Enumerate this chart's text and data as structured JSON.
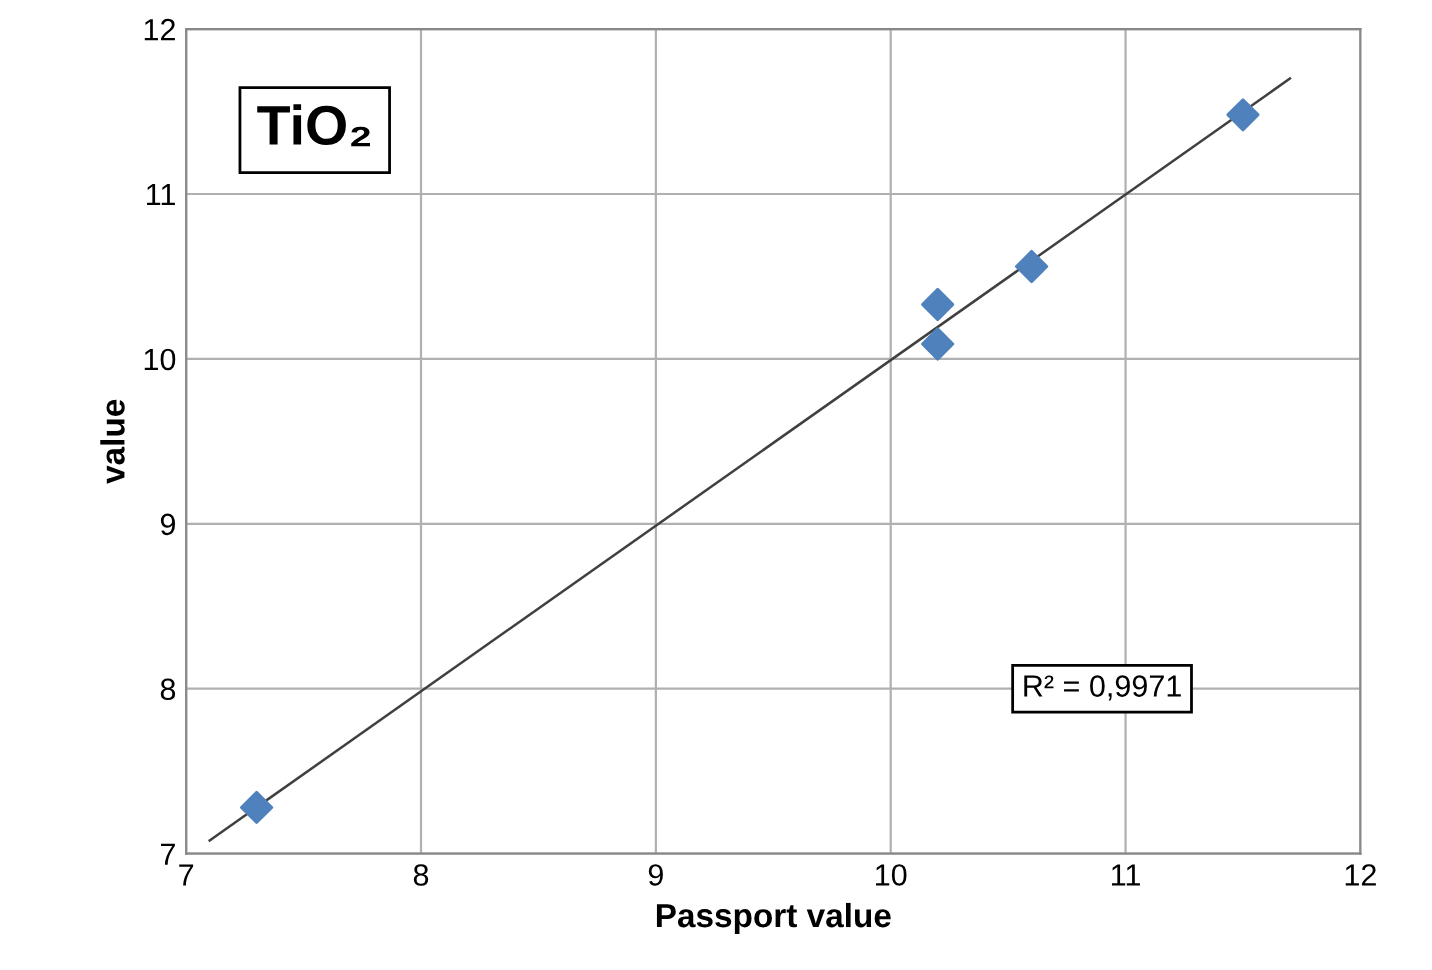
{
  "chart_data": {
    "type": "scatter",
    "title": "TiO₂",
    "xlabel": "Passport value",
    "ylabel": "value",
    "series": [
      {
        "color": "#4f81bd",
        "x": [
          7.3,
          10.2,
          10.2,
          10.6,
          11.5
        ],
        "values": [
          7.28,
          10.33,
          10.09,
          10.56,
          11.48
        ],
        "marker": "diamond"
      },
      {
        "type": "line",
        "color": "#404040",
        "x": [
          7.1,
          11.7
        ],
        "values": [
          7.08,
          11.7
        ],
        "marker": "none"
      }
    ],
    "annotations": [
      "R² = 0,9971"
    ],
    "xlim": [
      7,
      12
    ],
    "ylim": [
      7,
      12
    ],
    "xticks": [
      7,
      8,
      9,
      10,
      11,
      12
    ],
    "yticks": [
      7,
      8,
      9,
      10,
      11,
      12
    ],
    "grid": true,
    "legend": false
  }
}
